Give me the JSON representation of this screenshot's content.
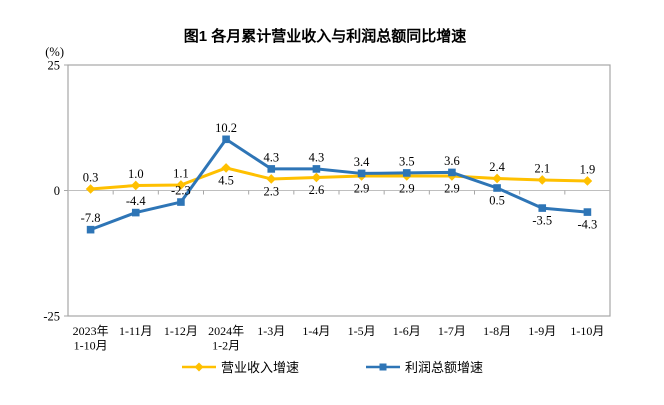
{
  "chart_data": {
    "type": "line",
    "title": "图1 各月累计营业收入与利润总额同比增速",
    "ylabel": "(%)",
    "ylim": [
      -25,
      25
    ],
    "ytick_values": [
      25,
      0,
      -25
    ],
    "grid": false,
    "legend_position": "bottom",
    "background": "#ffffff",
    "axis_color": "#A6A6A6",
    "zero_line_color": "#BFBFBF",
    "text_color": "#000000",
    "categories": [
      [
        "2023年",
        "1-10月"
      ],
      [
        "1-11月"
      ],
      [
        "1-12月"
      ],
      [
        "2024年",
        "1-2月"
      ],
      [
        "1-3月"
      ],
      [
        "1-4月"
      ],
      [
        "1-5月"
      ],
      [
        "1-6月"
      ],
      [
        "1-7月"
      ],
      [
        "1-8月"
      ],
      [
        "1-9月"
      ],
      [
        "1-10月"
      ]
    ],
    "series": [
      {
        "name": "营业收入增速",
        "color": "#FFC000",
        "marker": "diamond",
        "values": [
          0.3,
          1.0,
          1.1,
          4.5,
          2.3,
          2.6,
          2.9,
          2.9,
          2.9,
          2.4,
          2.1,
          1.9
        ],
        "label_positions": [
          "above",
          "above",
          "above",
          "below",
          "below",
          "below",
          "below",
          "below",
          "below",
          "above",
          "above",
          "above"
        ]
      },
      {
        "name": "利润总额增速",
        "color": "#2E75B6",
        "marker": "square",
        "values": [
          -7.8,
          -4.4,
          -2.3,
          10.2,
          4.3,
          4.3,
          3.4,
          3.5,
          3.6,
          0.5,
          -3.5,
          -4.3
        ],
        "label_positions": [
          "above",
          "above",
          "above",
          "above",
          "above",
          "above",
          "above",
          "above",
          "above",
          "below",
          "below",
          "below"
        ]
      }
    ]
  }
}
